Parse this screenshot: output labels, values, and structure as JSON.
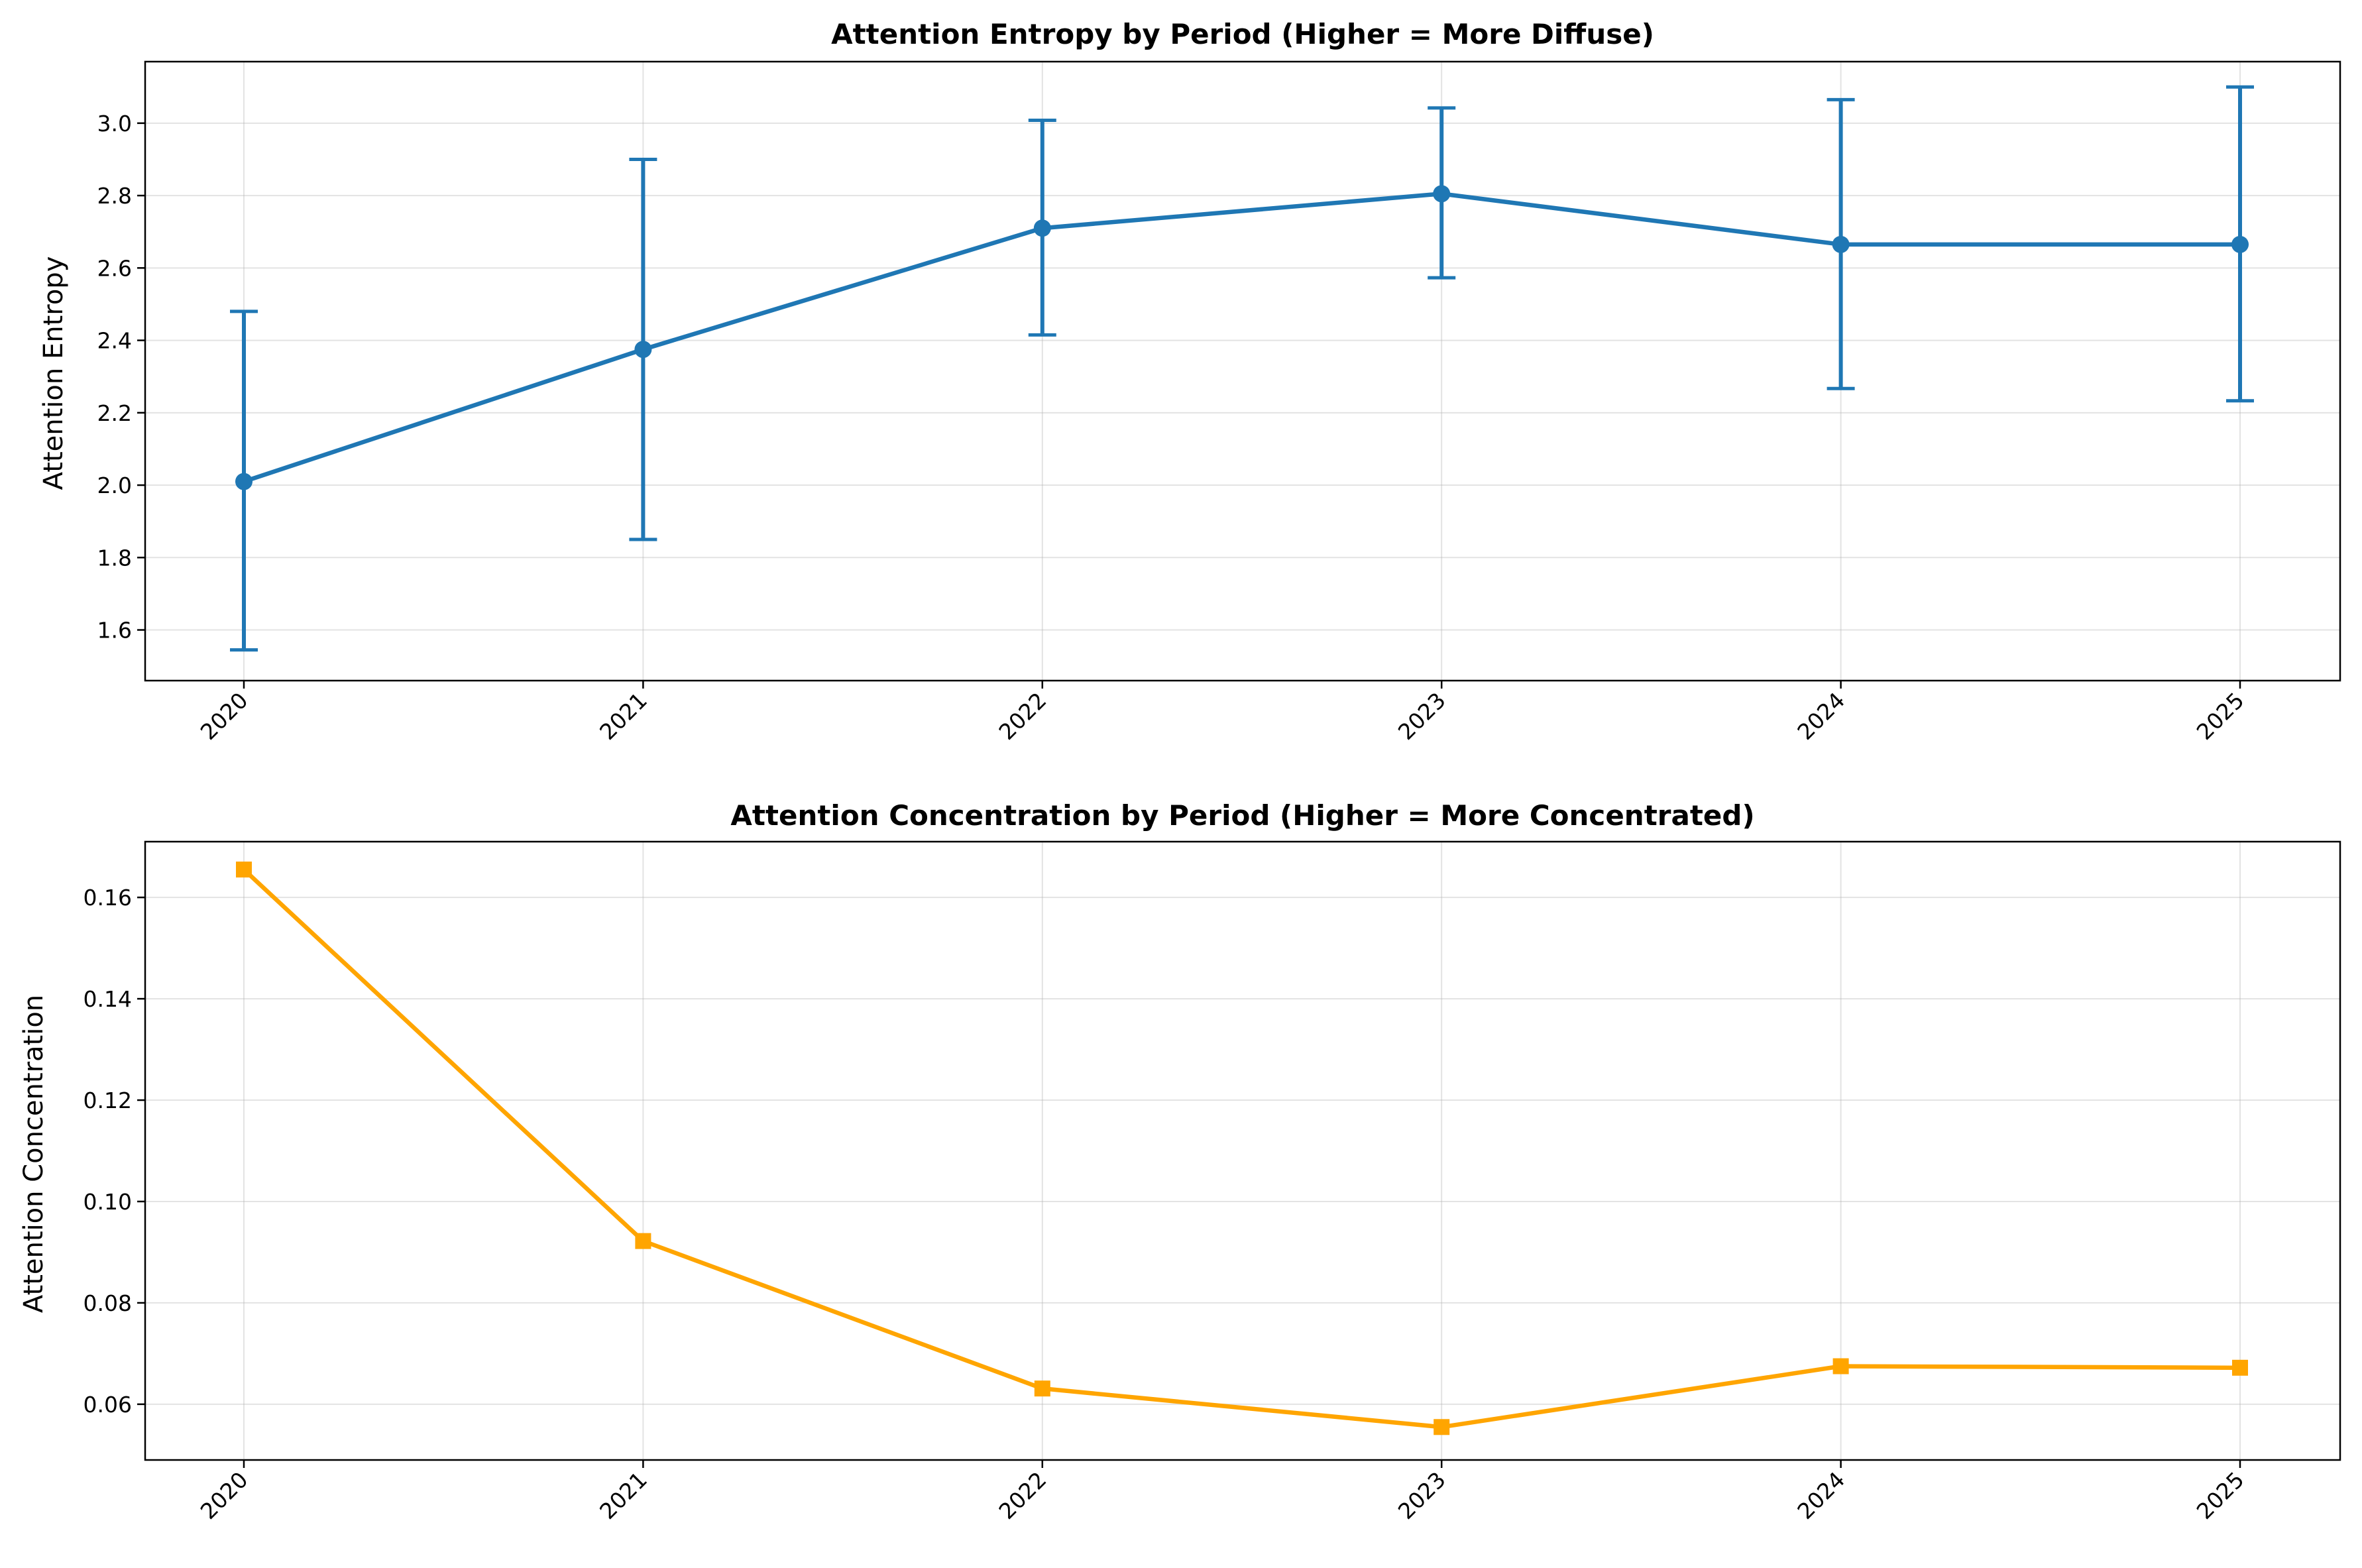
{
  "chart_data": [
    {
      "type": "line",
      "title": "Attention Entropy by Period (Higher = More Diffuse)",
      "xlabel": "",
      "ylabel": "Attention Entropy",
      "categories": [
        "2020",
        "2021",
        "2022",
        "2023",
        "2024",
        "2025"
      ],
      "series": [
        {
          "values": [
            2.01,
            2.375,
            2.71,
            2.805,
            2.665,
            2.665
          ],
          "error_bars": [
            {
              "low": 1.545,
              "high": 2.48
            },
            {
              "low": 1.85,
              "high": 2.9
            },
            {
              "low": 2.415,
              "high": 3.008
            },
            {
              "low": 2.573,
              "high": 3.042
            },
            {
              "low": 2.267,
              "high": 3.065
            },
            {
              "low": 2.233,
              "high": 3.1
            }
          ],
          "color": "#1f77b4",
          "marker": "circle"
        }
      ],
      "ylim": [
        1.46,
        3.17
      ],
      "yticks": [
        "1.6",
        "1.8",
        "2.0",
        "2.2",
        "2.4",
        "2.6",
        "2.8",
        "3.0"
      ],
      "grid": true
    },
    {
      "type": "line",
      "title": "Attention Concentration by Period (Higher = More Concentrated)",
      "xlabel": "",
      "ylabel": "Attention Concentration",
      "categories": [
        "2020",
        "2021",
        "2022",
        "2023",
        "2024",
        "2025"
      ],
      "series": [
        {
          "values": [
            0.1655,
            0.0922,
            0.0631,
            0.0555,
            0.0675,
            0.0672
          ],
          "color": "#ffa500",
          "marker": "square"
        }
      ],
      "ylim": [
        0.049,
        0.171
      ],
      "yticks": [
        "0.06",
        "0.08",
        "0.10",
        "0.12",
        "0.14",
        "0.16"
      ],
      "grid": true
    }
  ]
}
